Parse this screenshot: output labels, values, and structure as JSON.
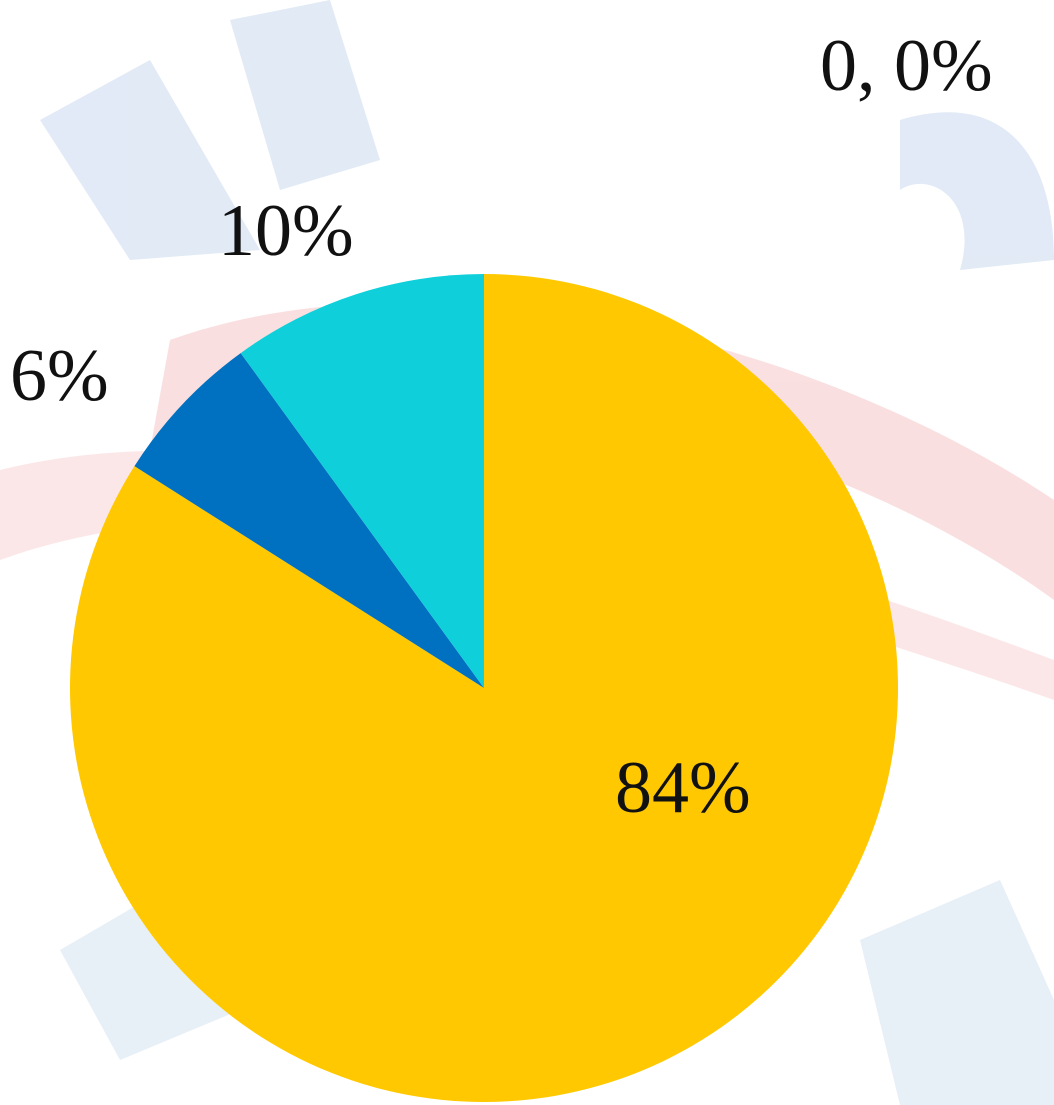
{
  "chart_data": {
    "type": "pie",
    "values": [
      84,
      6,
      10,
      0
    ],
    "value_labels": [
      "84%",
      "6%",
      "10%",
      "0, 0%"
    ],
    "colors": [
      "#ffc800",
      "#0070c0",
      "#0fcfda",
      "#a5a5a5"
    ],
    "start_angle": 90,
    "direction": "clockwise"
  }
}
